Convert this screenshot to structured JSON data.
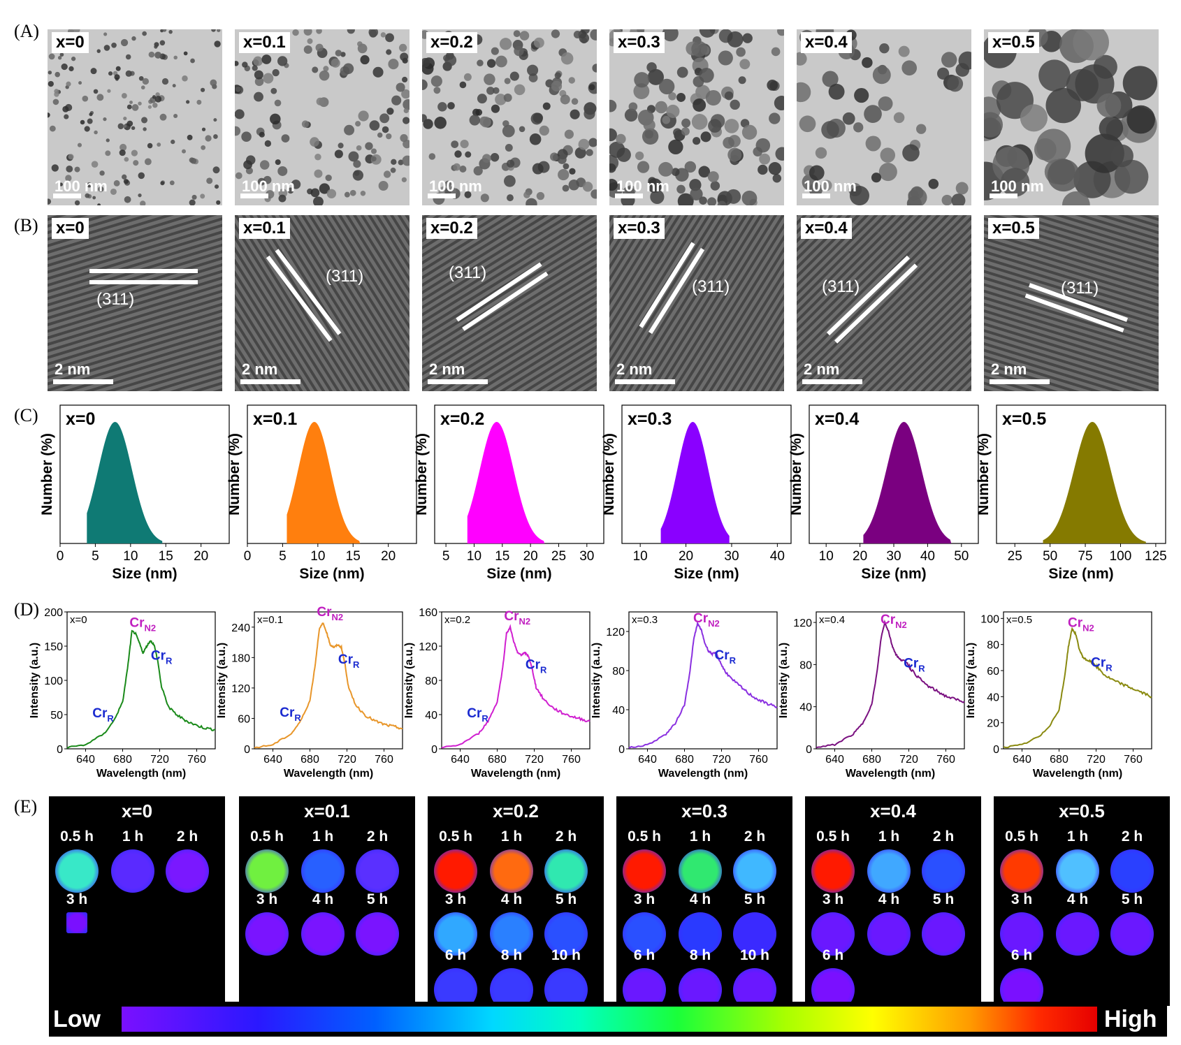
{
  "row_labels": {
    "a": "(A)",
    "b": "(B)",
    "c": "(C)",
    "d": "(D)",
    "e": "(E)"
  },
  "samples": [
    "x=0",
    "x=0.1",
    "x=0.2",
    "x=0.3",
    "x=0.4",
    "x=0.5"
  ],
  "tem": {
    "scale_label": "100 nm"
  },
  "hrtem": {
    "scale_label": "2 nm",
    "plane_label": "(311)"
  },
  "size_dist": {
    "ylabel": "Number (%)",
    "xlabel": "Size (nm)",
    "panels": [
      {
        "color": "#0f7a74",
        "xlim": [
          0,
          24
        ],
        "ticks": [
          0,
          5,
          10,
          15,
          20
        ],
        "mean": 7.8,
        "sigma": 2.4,
        "min": 3.8,
        "max": 14.5
      },
      {
        "color": "#ff7f0e",
        "xlim": [
          0,
          24
        ],
        "ticks": [
          0,
          5,
          10,
          15,
          20
        ],
        "mean": 9.5,
        "sigma": 2.3,
        "min": 5.6,
        "max": 16
      },
      {
        "color": "#ff00ff",
        "xlim": [
          3,
          33
        ],
        "ticks": [
          5,
          10,
          15,
          20,
          25,
          30
        ],
        "mean": 14,
        "sigma": 3.0,
        "min": 8.8,
        "max": 22.5
      },
      {
        "color": "#8a00ff",
        "xlim": [
          6,
          43
        ],
        "ticks": [
          10,
          20,
          30,
          40
        ],
        "mean": 21.5,
        "sigma": 3.4,
        "min": 14.5,
        "max": 29.5
      },
      {
        "color": "#7a0080",
        "xlim": [
          5,
          55
        ],
        "ticks": [
          10,
          20,
          30,
          40,
          50
        ],
        "mean": 33,
        "sigma": 5.2,
        "min": 21,
        "max": 47
      },
      {
        "color": "#857a00",
        "xlim": [
          12,
          132
        ],
        "ticks": [
          25,
          50,
          75,
          100,
          125
        ],
        "mean": 80,
        "sigma": 13,
        "min": 45,
        "max": 118
      }
    ]
  },
  "chart_data": [
    {
      "type": "line",
      "sample": "x=0",
      "xlabel": "Wavelength (nm)",
      "ylabel": "Intensity (a.u.)",
      "color": "#1a8a1a",
      "xlim": [
        620,
        780
      ],
      "ylim": [
        0,
        200
      ],
      "yticks": [
        0,
        50,
        100,
        150,
        200
      ],
      "x": [
        620,
        640,
        660,
        670,
        680,
        686,
        690,
        694,
        698,
        702,
        706,
        710,
        714,
        718,
        722,
        730,
        740,
        750,
        760,
        770,
        780
      ],
      "y": [
        2,
        6,
        22,
        40,
        68,
        125,
        172,
        168,
        155,
        140,
        150,
        158,
        152,
        128,
        90,
        60,
        48,
        40,
        34,
        30,
        28
      ],
      "annotations": [
        {
          "text": "Cr",
          "sub": "N2",
          "x": 695,
          "color": "#c020c0"
        },
        {
          "text": "Cr",
          "sub": "R",
          "x": 718,
          "color": "#1a2ad0"
        },
        {
          "text": "Cr",
          "sub": "R",
          "x": 673,
          "color": "#1a2ad0"
        }
      ]
    },
    {
      "type": "line",
      "sample": "x=0.1",
      "xlabel": "Wavelength (nm)",
      "ylabel": "Intensity (a.u.)",
      "color": "#e8962a",
      "xlim": [
        620,
        780
      ],
      "ylim": [
        0,
        270
      ],
      "yticks": [
        0,
        60,
        120,
        180,
        240
      ],
      "x": [
        620,
        640,
        660,
        670,
        680,
        686,
        690,
        694,
        698,
        702,
        706,
        710,
        714,
        718,
        722,
        730,
        740,
        750,
        760,
        770,
        780
      ],
      "y": [
        2,
        8,
        30,
        55,
        95,
        170,
        235,
        248,
        230,
        205,
        200,
        205,
        200,
        165,
        118,
        85,
        66,
        55,
        48,
        44,
        40
      ],
      "annotations": [
        {
          "text": "Cr",
          "sub": "N2",
          "x": 695,
          "color": "#c020c0"
        },
        {
          "text": "Cr",
          "sub": "R",
          "x": 718,
          "color": "#1a2ad0"
        },
        {
          "text": "Cr",
          "sub": "R",
          "x": 673,
          "color": "#1a2ad0"
        }
      ]
    },
    {
      "type": "line",
      "sample": "x=0.2",
      "xlabel": "Wavelength (nm)",
      "ylabel": "Intensity (a.u.)",
      "color": "#d020d0",
      "xlim": [
        620,
        780
      ],
      "ylim": [
        0,
        160
      ],
      "yticks": [
        0,
        40,
        80,
        120,
        160
      ],
      "x": [
        620,
        640,
        660,
        670,
        680,
        686,
        690,
        694,
        698,
        702,
        706,
        710,
        714,
        718,
        722,
        730,
        740,
        750,
        760,
        770,
        780
      ],
      "y": [
        1,
        5,
        18,
        32,
        55,
        95,
        135,
        142,
        125,
        112,
        110,
        112,
        108,
        92,
        72,
        58,
        48,
        42,
        38,
        35,
        32
      ],
      "annotations": [
        {
          "text": "Cr",
          "sub": "N2",
          "x": 695,
          "color": "#c020c0"
        },
        {
          "text": "Cr",
          "sub": "R",
          "x": 718,
          "color": "#1a2ad0"
        },
        {
          "text": "Cr",
          "sub": "R",
          "x": 673,
          "color": "#1a2ad0"
        }
      ]
    },
    {
      "type": "line",
      "sample": "x=0.3",
      "xlabel": "Wavelength (nm)",
      "ylabel": "Intensity (a.u.)",
      "color": "#8a30e0",
      "xlim": [
        620,
        780
      ],
      "ylim": [
        0,
        140
      ],
      "yticks": [
        0,
        40,
        80,
        120
      ],
      "x": [
        620,
        640,
        660,
        670,
        680,
        686,
        690,
        694,
        698,
        702,
        706,
        710,
        714,
        718,
        722,
        730,
        740,
        750,
        760,
        770,
        780
      ],
      "y": [
        1,
        4,
        15,
        26,
        45,
        80,
        112,
        128,
        122,
        108,
        100,
        97,
        98,
        90,
        82,
        72,
        64,
        56,
        50,
        46,
        43
      ],
      "annotations": [
        {
          "text": "Cr",
          "sub": "N2",
          "x": 697,
          "color": "#c020c0"
        },
        {
          "text": "Cr",
          "sub": "R",
          "x": 720,
          "color": "#1a2ad0"
        }
      ]
    },
    {
      "type": "line",
      "sample": "x=0.4",
      "xlabel": "Wavelength (nm)",
      "ylabel": "Intensity (a.u.)",
      "color": "#7a1080",
      "xlim": [
        620,
        780
      ],
      "ylim": [
        0,
        130
      ],
      "yticks": [
        0,
        40,
        80,
        120
      ],
      "x": [
        620,
        640,
        660,
        670,
        680,
        686,
        690,
        694,
        698,
        702,
        706,
        710,
        714,
        718,
        722,
        730,
        740,
        750,
        760,
        770,
        780
      ],
      "y": [
        1,
        4,
        14,
        24,
        42,
        75,
        105,
        120,
        112,
        98,
        90,
        85,
        84,
        82,
        76,
        68,
        60,
        55,
        50,
        47,
        45
      ],
      "annotations": [
        {
          "text": "Cr",
          "sub": "N2",
          "x": 697,
          "color": "#c020c0"
        },
        {
          "text": "Cr",
          "sub": "R",
          "x": 722,
          "color": "#1a2ad0"
        }
      ]
    },
    {
      "type": "line",
      "sample": "x=0.5",
      "xlabel": "Wavelength (nm)",
      "ylabel": "Intensity (a.u.)",
      "color": "#8a8a10",
      "xlim": [
        620,
        780
      ],
      "ylim": [
        0,
        105
      ],
      "yticks": [
        0,
        20,
        40,
        60,
        80,
        100
      ],
      "x": [
        620,
        640,
        660,
        670,
        680,
        686,
        690,
        694,
        698,
        702,
        706,
        710,
        714,
        718,
        722,
        730,
        740,
        750,
        760,
        770,
        780
      ],
      "y": [
        1,
        3,
        10,
        18,
        30,
        55,
        78,
        92,
        88,
        76,
        70,
        68,
        67,
        65,
        62,
        56,
        52,
        49,
        46,
        43,
        40
      ],
      "annotations": [
        {
          "text": "Cr",
          "sub": "N2",
          "x": 697,
          "color": "#c020c0"
        },
        {
          "text": "Cr",
          "sub": "R",
          "x": 722,
          "color": "#1a2ad0"
        }
      ]
    }
  ],
  "imaging": {
    "low_label": "Low",
    "high_label": "High",
    "panels": [
      {
        "title": "x=0",
        "spots": [
          {
            "t": "0.5 h",
            "c": "#38e8c8"
          },
          {
            "t": "1 h",
            "c": "#5a2aff"
          },
          {
            "t": "2 h",
            "c": "#7a18ff"
          },
          {
            "t": "3 h",
            "c": "#7a10ff",
            "tiny": true
          }
        ]
      },
      {
        "title": "x=0.1",
        "spots": [
          {
            "t": "0.5 h",
            "c": "#70f040"
          },
          {
            "t": "1 h",
            "c": "#2860ff"
          },
          {
            "t": "2 h",
            "c": "#5a30ff"
          },
          {
            "t": "3 h",
            "c": "#7a14ff"
          },
          {
            "t": "4 h",
            "c": "#7a14ff"
          },
          {
            "t": "5 h",
            "c": "#7a14ff"
          }
        ]
      },
      {
        "title": "x=0.2",
        "spots": [
          {
            "t": "0.5 h",
            "c": "#ff1a00"
          },
          {
            "t": "1 h",
            "c": "#ff6a10"
          },
          {
            "t": "2 h",
            "c": "#30e8b0"
          },
          {
            "t": "3 h",
            "c": "#30a8ff"
          },
          {
            "t": "4 h",
            "c": "#2a80ff"
          },
          {
            "t": "5 h",
            "c": "#2a50ff"
          },
          {
            "t": "6 h",
            "c": "#3a3aff"
          },
          {
            "t": "8 h",
            "c": "#3a3aff"
          },
          {
            "t": "10 h",
            "c": "#3a3aff"
          }
        ]
      },
      {
        "title": "x=0.3",
        "spots": [
          {
            "t": "0.5 h",
            "c": "#ff1a00"
          },
          {
            "t": "1 h",
            "c": "#30e870"
          },
          {
            "t": "2 h",
            "c": "#40b8ff"
          },
          {
            "t": "3 h",
            "c": "#2a50ff"
          },
          {
            "t": "4 h",
            "c": "#2a3aff"
          },
          {
            "t": "5 h",
            "c": "#3a2aff"
          },
          {
            "t": "6 h",
            "c": "#6a18ff"
          },
          {
            "t": "8 h",
            "c": "#6a18ff"
          },
          {
            "t": "10 h",
            "c": "#6a18ff"
          }
        ]
      },
      {
        "title": "x=0.4",
        "spots": [
          {
            "t": "0.5 h",
            "c": "#ff1a00"
          },
          {
            "t": "1 h",
            "c": "#40a8ff"
          },
          {
            "t": "2 h",
            "c": "#2a50ff"
          },
          {
            "t": "3 h",
            "c": "#6a18ff"
          },
          {
            "t": "4 h",
            "c": "#6a18ff"
          },
          {
            "t": "5 h",
            "c": "#6a18ff"
          },
          {
            "t": "6 h",
            "c": "#7a10ff"
          }
        ]
      },
      {
        "title": "x=0.5",
        "spots": [
          {
            "t": "0.5 h",
            "c": "#ff3a00"
          },
          {
            "t": "1 h",
            "c": "#50c0ff"
          },
          {
            "t": "2 h",
            "c": "#2a40ff"
          },
          {
            "t": "3 h",
            "c": "#6a18ff"
          },
          {
            "t": "4 h",
            "c": "#6a18ff"
          },
          {
            "t": "5 h",
            "c": "#6a18ff"
          },
          {
            "t": "6 h",
            "c": "#7a10ff"
          }
        ]
      }
    ]
  }
}
